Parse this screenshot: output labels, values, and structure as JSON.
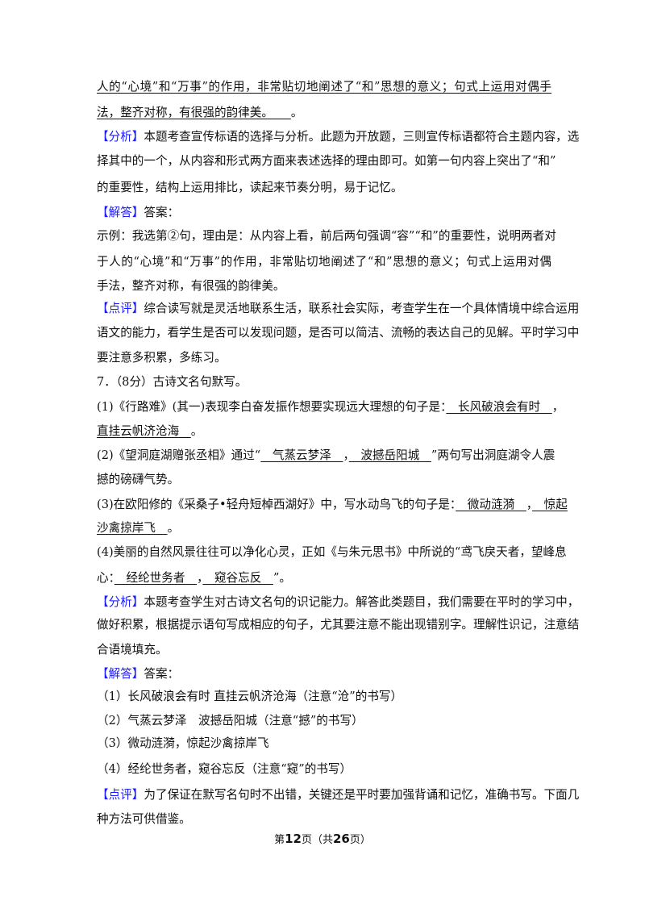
{
  "colors": {
    "tag": "#1a1aff",
    "text": "#111111"
  },
  "tags": {
    "analysis": "【分析】",
    "answer": "【解答】",
    "comment": "【点评】"
  },
  "prev": {
    "l1": "人的“心境”和“万事”的作用，非常贴切地阐述了“和”思想的意义；句式上运用对偶手",
    "l2": "法，整齐对称，有很强的韵律美。　　",
    "l2_end": "。"
  },
  "q6": {
    "analysis": [
      "本题考查宣传标语的选择与分析。此题为开放题，三则宣传标语都符合主题内容，选",
      "择其中的一个，从内容和形式两方面来表述选择的理由即可。如第一句内容上突出了“和”",
      "的重要性，结构上运用排比，读起来节奏分明，易于记忆。"
    ],
    "answer_label": "答案：",
    "answer": [
      "示例：我选第②句，理由是：从内容上看，前后两句强调“容”“和”的重要性，说明两者对",
      "于人的“心境”和“万事”的作用，非常贴切地阐述了“和”思想的意义；句式上运用对偶",
      "手法，整齐对称，有很强的韵律美。"
    ],
    "comment": [
      "综合读写就是灵活地联系生活，联系社会实际，考查学生在一个具体情境中综合运用",
      "语文的能力，看学生是否可以发现问题，是否可以简洁、流畅的表达自己的见解。平时学习中",
      "要注意多积累，多练习。"
    ]
  },
  "q7": {
    "title": "7．（8分）古诗文名句默写。",
    "s1_pre": "(1)《行路难》(其一)表现李白奋发振作想要实现远大理想的句子是：",
    "s1_a": "　长风破浪会有时　",
    "s1_sep": "，",
    "s1_b": "直挂云帆济沧海　",
    "s1_end": "。",
    "s2_pre": "(2)《望洞庭湖赠张丞相》通过“",
    "s2_a": "　气蒸云梦泽　",
    "s2_sep": "，",
    "s2_b": "　波撼岳阳城　",
    "s2_post": "”两句写出洞庭湖令人震",
    "s2_l2": "撼的磅礴气势。",
    "s3_pre": "(3)在欧阳修的《采桑子•轻舟短棹西湖好》中，写水动鸟飞的句子是：",
    "s3_a": "　微动涟漪　",
    "s3_sep": "，",
    "s3_b1": "　惊起",
    "s3_b2": "沙禽掠岸飞　",
    "s3_end": "。",
    "s4_l1": "(4)美丽的自然风景往往可以净化心灵，正如《与朱元思书》中所说的“鸢飞戾天者，望峰息",
    "s4_pre": "心：",
    "s4_a": "　经纶世务者　",
    "s4_sep": "，",
    "s4_b": "　窥谷忘反　",
    "s4_end": "”。",
    "analysis": [
      "本题考查学生对古诗文名句的识记能力。解答此类题目，我们需要在平时的学习中，",
      "做好积累，根据提示语句写成相应的句子，尤其要注意不能出现错别字。理解性识记，注意结",
      "合语境填充。"
    ],
    "answer_label": "答案：",
    "answers": [
      "（1）长风破浪会有时 直挂云帆济沧海（注意“沧”的书写）",
      "（2）气蒸云梦泽　波撼岳阳城（注意“撼”的书写）",
      "（3）微动涟漪，惊起沙禽掠岸飞",
      "（4）经纶世务者，窥谷忘反（注意“窥”的书写）"
    ],
    "comment": [
      "为了保证在默写名句时不出错，关键还是平时要加强背诵和记忆，准确书写。下面几",
      "种方法可供借鉴。"
    ]
  },
  "footer": {
    "pre": "第",
    "page": "12",
    "mid": "页（共",
    "total": "26",
    "post": "页）"
  }
}
